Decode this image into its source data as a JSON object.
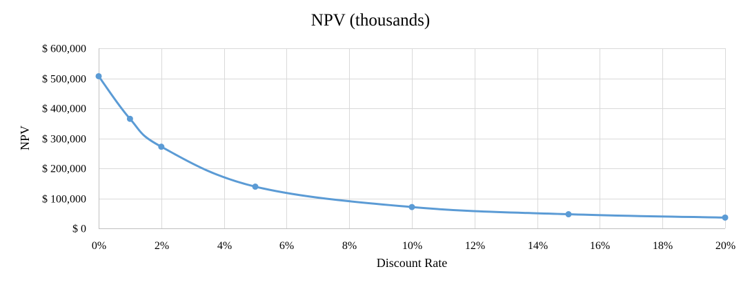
{
  "chart_data": {
    "type": "line",
    "title": "NPV (thousands)",
    "xlabel": "Discount Rate",
    "ylabel": "NPV",
    "x": [
      0,
      0.01,
      0.02,
      0.05,
      0.1,
      0.15,
      0.2
    ],
    "series": [
      {
        "values": [
          507000,
          365000,
          272000,
          139000,
          71000,
          47000,
          36000
        ],
        "color": "#5b9bd5"
      }
    ],
    "xlim": [
      0,
      0.2
    ],
    "ylim": [
      0,
      600000
    ],
    "x_ticks": [
      0,
      0.02,
      0.04,
      0.06,
      0.08,
      0.1,
      0.12,
      0.14,
      0.16,
      0.18,
      0.2
    ],
    "x_tick_labels": [
      "0%",
      "2%",
      "4%",
      "6%",
      "8%",
      "10%",
      "12%",
      "14%",
      "16%",
      "18%",
      "20%"
    ],
    "y_ticks": [
      0,
      100000,
      200000,
      300000,
      400000,
      500000,
      600000
    ],
    "y_tick_labels": [
      "$ 0",
      "$ 100,000",
      "$ 200,000",
      "$ 300,000",
      "$ 400,000",
      "$ 500,000",
      "$ 600,000"
    ],
    "grid": true,
    "legend": "none"
  }
}
